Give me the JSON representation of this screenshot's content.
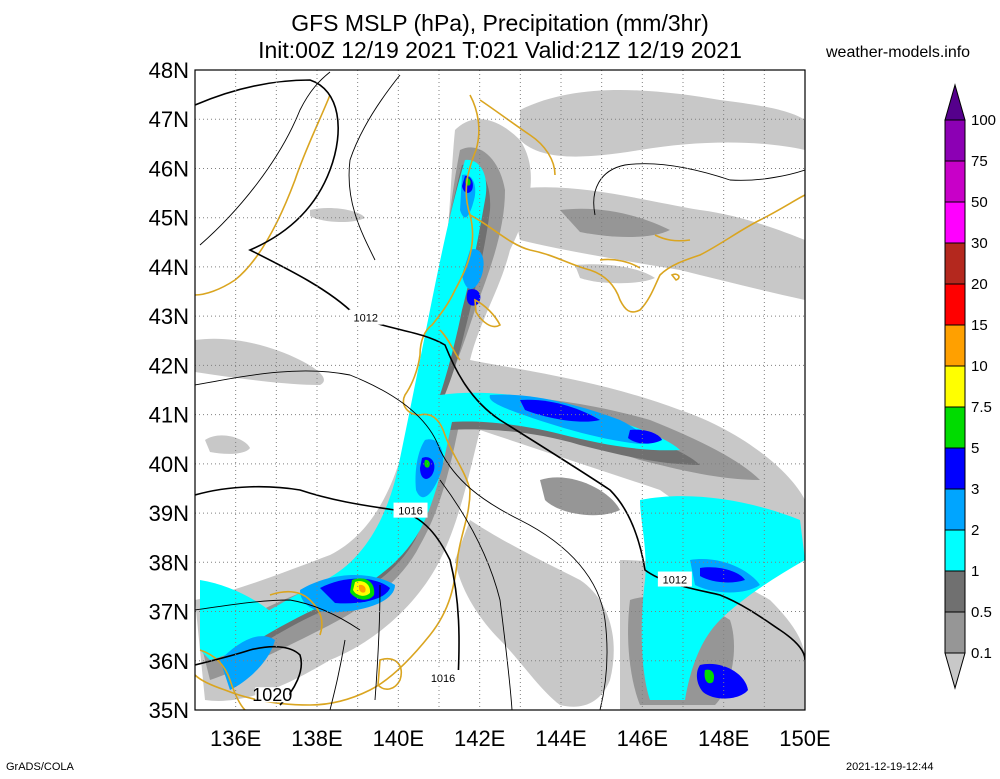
{
  "title": {
    "line1": "GFS MSLP (hPa), Precipitation (mm/3hr)",
    "line2": "Init:00Z 12/19 2021 T:021 Valid:21Z 12/19 2021"
  },
  "credit": "weather-models.info",
  "footer": {
    "left": "GrADS/COLA",
    "right": "2021-12-19-12:44"
  },
  "map": {
    "lat_range": [
      35,
      48
    ],
    "lon_range": [
      135,
      150
    ],
    "lat_labels": [
      "48N",
      "47N",
      "46N",
      "45N",
      "44N",
      "43N",
      "42N",
      "41N",
      "40N",
      "39N",
      "38N",
      "37N",
      "36N",
      "35N"
    ],
    "lon_labels": [
      "136E",
      "138E",
      "140E",
      "142E",
      "144E",
      "146E",
      "148E",
      "150E"
    ],
    "isobar_labels": [
      {
        "text": "1012",
        "lon": 139.2,
        "lat": 42.97
      },
      {
        "text": "1016",
        "lon": 140.3,
        "lat": 39.05
      },
      {
        "text": "1012",
        "lon": 146.8,
        "lat": 37.65
      },
      {
        "text": "1016",
        "lon": 141.1,
        "lat": 35.65
      },
      {
        "text": "1020",
        "lon": 136.9,
        "lat": 35.3
      }
    ],
    "colorbar": {
      "levels": [
        "0.1",
        "0.5",
        "1",
        "2",
        "3",
        "5",
        "7.5",
        "10",
        "15",
        "20",
        "30",
        "50",
        "75",
        "100"
      ],
      "colors": [
        "#c8c8c8",
        "#969696",
        "#707070",
        "#00ffff",
        "#00a5ff",
        "#0000ff",
        "#00dc00",
        "#ffff00",
        "#ffa000",
        "#ff0000",
        "#b4281e",
        "#ff00ff",
        "#c800c8",
        "#8c00b4",
        "#55008c"
      ]
    }
  }
}
